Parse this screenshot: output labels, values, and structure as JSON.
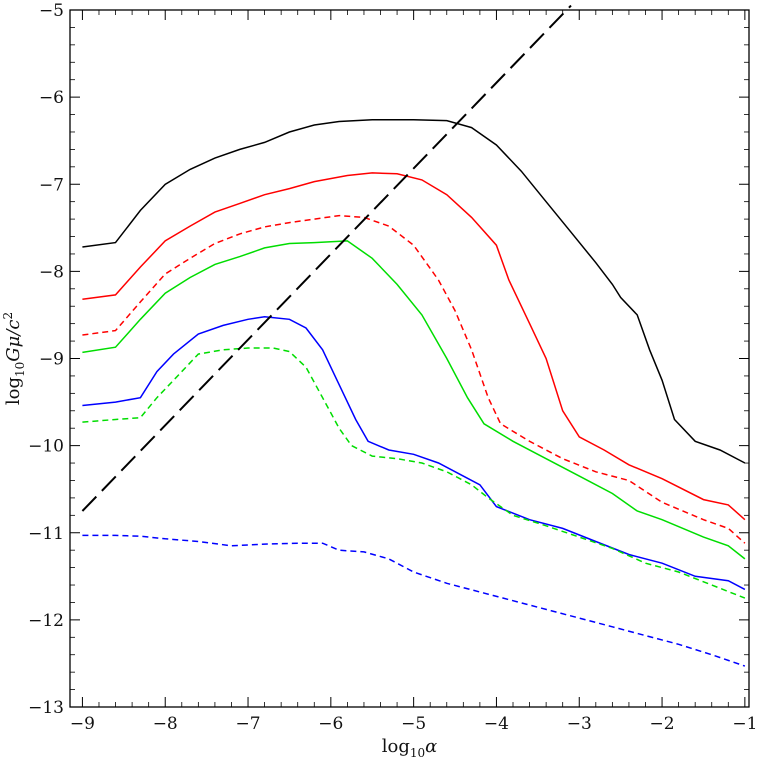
{
  "chart_data": {
    "type": "line",
    "xlabel": {
      "prefix": "log",
      "sub": "10",
      "var": "α"
    },
    "ylabel": {
      "prefix": "log",
      "sub": "10",
      "var1": "Gμ/c",
      "sup": "2"
    },
    "xlim": [
      -9.15,
      -0.95
    ],
    "ylim": [
      -13,
      -5
    ],
    "x_ticks": [
      -9,
      -8,
      -7,
      -6,
      -5,
      -4,
      -3,
      -2,
      -1
    ],
    "x_tick_labels": [
      "−9",
      "−8",
      "−7",
      "−6",
      "−5",
      "−4",
      "−3",
      "−2",
      "−1"
    ],
    "y_ticks": [
      -5,
      -6,
      -7,
      -8,
      -9,
      -10,
      -11,
      -12,
      -13
    ],
    "y_tick_labels": [
      "−5",
      "−6",
      "−7",
      "−8",
      "−9",
      "−10",
      "−11",
      "−12",
      "−13"
    ],
    "grid": false,
    "series": [
      {
        "color": "#000000",
        "dash": "solid",
        "points": [
          [
            -9.0,
            -7.72
          ],
          [
            -8.6,
            -7.67
          ],
          [
            -8.3,
            -7.3
          ],
          [
            -8.0,
            -7.0
          ],
          [
            -7.7,
            -6.83
          ],
          [
            -7.4,
            -6.7
          ],
          [
            -7.1,
            -6.6
          ],
          [
            -6.8,
            -6.52
          ],
          [
            -6.5,
            -6.4
          ],
          [
            -6.2,
            -6.32
          ],
          [
            -5.9,
            -6.28
          ],
          [
            -5.5,
            -6.26
          ],
          [
            -5.0,
            -6.26
          ],
          [
            -4.6,
            -6.27
          ],
          [
            -4.3,
            -6.35
          ],
          [
            -4.0,
            -6.55
          ],
          [
            -3.7,
            -6.85
          ],
          [
            -3.4,
            -7.2
          ],
          [
            -3.1,
            -7.55
          ],
          [
            -2.8,
            -7.9
          ],
          [
            -2.6,
            -8.15
          ],
          [
            -2.5,
            -8.3
          ],
          [
            -2.3,
            -8.5
          ],
          [
            -2.15,
            -8.9
          ],
          [
            -2.0,
            -9.25
          ],
          [
            -1.85,
            -9.7
          ],
          [
            -1.6,
            -9.95
          ],
          [
            -1.3,
            -10.05
          ],
          [
            -1.0,
            -10.2
          ]
        ]
      },
      {
        "color": "#ff0000",
        "dash": "solid",
        "points": [
          [
            -9.0,
            -8.32
          ],
          [
            -8.6,
            -8.27
          ],
          [
            -8.3,
            -7.95
          ],
          [
            -8.0,
            -7.65
          ],
          [
            -7.7,
            -7.48
          ],
          [
            -7.4,
            -7.32
          ],
          [
            -7.1,
            -7.22
          ],
          [
            -6.8,
            -7.12
          ],
          [
            -6.5,
            -7.05
          ],
          [
            -6.2,
            -6.97
          ],
          [
            -5.8,
            -6.9
          ],
          [
            -5.5,
            -6.87
          ],
          [
            -5.2,
            -6.88
          ],
          [
            -4.9,
            -6.95
          ],
          [
            -4.6,
            -7.12
          ],
          [
            -4.3,
            -7.38
          ],
          [
            -4.0,
            -7.7
          ],
          [
            -3.85,
            -8.1
          ],
          [
            -3.6,
            -8.6
          ],
          [
            -3.4,
            -9.0
          ],
          [
            -3.2,
            -9.6
          ],
          [
            -3.0,
            -9.9
          ],
          [
            -2.7,
            -10.05
          ],
          [
            -2.4,
            -10.22
          ],
          [
            -2.0,
            -10.38
          ],
          [
            -1.5,
            -10.62
          ],
          [
            -1.2,
            -10.68
          ],
          [
            -1.0,
            -10.85
          ]
        ]
      },
      {
        "color": "#ff0000",
        "dash": "dashed",
        "points": [
          [
            -9.0,
            -8.73
          ],
          [
            -8.6,
            -8.68
          ],
          [
            -8.3,
            -8.35
          ],
          [
            -8.0,
            -8.03
          ],
          [
            -7.7,
            -7.85
          ],
          [
            -7.4,
            -7.68
          ],
          [
            -7.1,
            -7.57
          ],
          [
            -6.8,
            -7.49
          ],
          [
            -6.5,
            -7.44
          ],
          [
            -6.2,
            -7.4
          ],
          [
            -5.9,
            -7.36
          ],
          [
            -5.6,
            -7.38
          ],
          [
            -5.3,
            -7.48
          ],
          [
            -5.0,
            -7.7
          ],
          [
            -4.7,
            -8.1
          ],
          [
            -4.5,
            -8.45
          ],
          [
            -4.3,
            -8.9
          ],
          [
            -4.1,
            -9.45
          ],
          [
            -3.95,
            -9.75
          ],
          [
            -3.6,
            -9.95
          ],
          [
            -3.2,
            -10.15
          ],
          [
            -2.8,
            -10.3
          ],
          [
            -2.4,
            -10.4
          ],
          [
            -2.0,
            -10.65
          ],
          [
            -1.5,
            -10.85
          ],
          [
            -1.2,
            -10.95
          ],
          [
            -1.0,
            -11.12
          ]
        ]
      },
      {
        "color": "#00dd00",
        "dash": "solid",
        "points": [
          [
            -9.0,
            -8.93
          ],
          [
            -8.6,
            -8.87
          ],
          [
            -8.3,
            -8.55
          ],
          [
            -8.0,
            -8.25
          ],
          [
            -7.7,
            -8.07
          ],
          [
            -7.4,
            -7.92
          ],
          [
            -7.1,
            -7.83
          ],
          [
            -6.8,
            -7.73
          ],
          [
            -6.5,
            -7.68
          ],
          [
            -6.2,
            -7.67
          ],
          [
            -5.8,
            -7.65
          ],
          [
            -5.5,
            -7.85
          ],
          [
            -5.2,
            -8.15
          ],
          [
            -4.9,
            -8.5
          ],
          [
            -4.6,
            -9.0
          ],
          [
            -4.35,
            -9.45
          ],
          [
            -4.15,
            -9.75
          ],
          [
            -3.8,
            -9.95
          ],
          [
            -3.4,
            -10.15
          ],
          [
            -3.0,
            -10.35
          ],
          [
            -2.6,
            -10.55
          ],
          [
            -2.3,
            -10.75
          ],
          [
            -2.0,
            -10.85
          ],
          [
            -1.5,
            -11.05
          ],
          [
            -1.2,
            -11.15
          ],
          [
            -1.0,
            -11.3
          ]
        ]
      },
      {
        "color": "#0000ff",
        "dash": "solid",
        "points": [
          [
            -9.0,
            -9.54
          ],
          [
            -8.6,
            -9.5
          ],
          [
            -8.3,
            -9.45
          ],
          [
            -8.1,
            -9.15
          ],
          [
            -7.9,
            -8.95
          ],
          [
            -7.6,
            -8.72
          ],
          [
            -7.3,
            -8.62
          ],
          [
            -7.0,
            -8.55
          ],
          [
            -6.8,
            -8.52
          ],
          [
            -6.5,
            -8.55
          ],
          [
            -6.3,
            -8.65
          ],
          [
            -6.1,
            -8.9
          ],
          [
            -5.9,
            -9.3
          ],
          [
            -5.7,
            -9.7
          ],
          [
            -5.55,
            -9.95
          ],
          [
            -5.3,
            -10.05
          ],
          [
            -5.0,
            -10.1
          ],
          [
            -4.7,
            -10.2
          ],
          [
            -4.4,
            -10.35
          ],
          [
            -4.2,
            -10.45
          ],
          [
            -4.0,
            -10.7
          ],
          [
            -3.6,
            -10.85
          ],
          [
            -3.2,
            -10.95
          ],
          [
            -2.8,
            -11.1
          ],
          [
            -2.4,
            -11.25
          ],
          [
            -2.0,
            -11.35
          ],
          [
            -1.6,
            -11.5
          ],
          [
            -1.2,
            -11.55
          ],
          [
            -1.0,
            -11.65
          ]
        ]
      },
      {
        "color": "#00dd00",
        "dash": "dashed",
        "points": [
          [
            -9.0,
            -9.73
          ],
          [
            -8.6,
            -9.7
          ],
          [
            -8.3,
            -9.68
          ],
          [
            -8.1,
            -9.45
          ],
          [
            -7.9,
            -9.25
          ],
          [
            -7.6,
            -8.95
          ],
          [
            -7.3,
            -8.9
          ],
          [
            -7.0,
            -8.88
          ],
          [
            -6.7,
            -8.88
          ],
          [
            -6.5,
            -8.92
          ],
          [
            -6.3,
            -9.1
          ],
          [
            -6.1,
            -9.45
          ],
          [
            -5.9,
            -9.8
          ],
          [
            -5.75,
            -10.0
          ],
          [
            -5.5,
            -10.12
          ],
          [
            -5.2,
            -10.15
          ],
          [
            -4.9,
            -10.2
          ],
          [
            -4.6,
            -10.3
          ],
          [
            -4.3,
            -10.45
          ],
          [
            -4.1,
            -10.6
          ],
          [
            -3.8,
            -10.8
          ],
          [
            -3.4,
            -10.92
          ],
          [
            -3.0,
            -11.05
          ],
          [
            -2.6,
            -11.18
          ],
          [
            -2.2,
            -11.35
          ],
          [
            -1.8,
            -11.45
          ],
          [
            -1.4,
            -11.6
          ],
          [
            -1.0,
            -11.75
          ]
        ]
      },
      {
        "color": "#0000ff",
        "dash": "dashed",
        "points": [
          [
            -9.0,
            -11.03
          ],
          [
            -8.6,
            -11.03
          ],
          [
            -8.3,
            -11.04
          ],
          [
            -8.0,
            -11.07
          ],
          [
            -7.6,
            -11.1
          ],
          [
            -7.2,
            -11.15
          ],
          [
            -6.8,
            -11.13
          ],
          [
            -6.4,
            -11.12
          ],
          [
            -6.1,
            -11.12
          ],
          [
            -5.9,
            -11.2
          ],
          [
            -5.6,
            -11.22
          ],
          [
            -5.3,
            -11.3
          ],
          [
            -5.0,
            -11.45
          ],
          [
            -4.6,
            -11.58
          ],
          [
            -4.2,
            -11.68
          ],
          [
            -3.8,
            -11.78
          ],
          [
            -3.4,
            -11.88
          ],
          [
            -3.0,
            -11.98
          ],
          [
            -2.6,
            -12.08
          ],
          [
            -2.2,
            -12.18
          ],
          [
            -1.8,
            -12.28
          ],
          [
            -1.4,
            -12.4
          ],
          [
            -1.0,
            -12.53
          ]
        ]
      },
      {
        "color": "#000000",
        "dash": "longdash",
        "points": [
          [
            -9.0,
            -10.75
          ],
          [
            -3.1,
            -4.95
          ]
        ]
      }
    ]
  }
}
